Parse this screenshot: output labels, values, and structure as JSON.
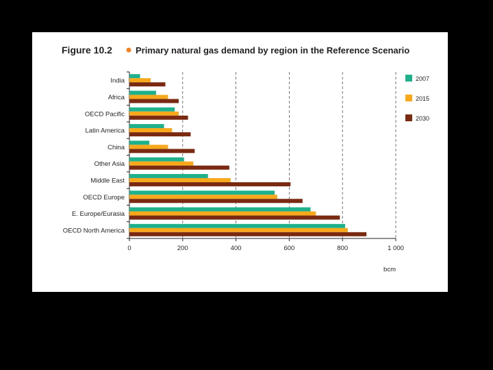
{
  "figure": {
    "label": "Figure 10.2",
    "bullet_color": "#f58220",
    "title": "Primary natural gas demand by region in the Reference Scenario"
  },
  "chart_data": {
    "type": "bar",
    "orientation": "horizontal",
    "categories": [
      "India",
      "Africa",
      "OECD Pacific",
      "Latin America",
      "China",
      "Other Asia",
      "Middle East",
      "OECD Europe",
      "E. Europe/Eurasia",
      "OECD North America"
    ],
    "series": [
      {
        "name": "2007",
        "color": "#1fb08c",
        "values": [
          40,
          100,
          170,
          130,
          75,
          205,
          295,
          545,
          680,
          810
        ]
      },
      {
        "name": "2015",
        "color": "#f7a81b",
        "values": [
          80,
          145,
          185,
          160,
          145,
          240,
          380,
          555,
          700,
          820
        ]
      },
      {
        "name": "2030",
        "color": "#7b2a12",
        "values": [
          135,
          185,
          220,
          230,
          245,
          375,
          605,
          650,
          790,
          890
        ]
      }
    ],
    "xlim": [
      0,
      1000
    ],
    "xticks": [
      "0",
      "200",
      "400",
      "600",
      "800",
      "1 000"
    ],
    "xtick_values": [
      0,
      200,
      400,
      600,
      800,
      1000
    ],
    "xlabel": "bcm",
    "grid": "vertical dashed",
    "legend_position": "right"
  }
}
